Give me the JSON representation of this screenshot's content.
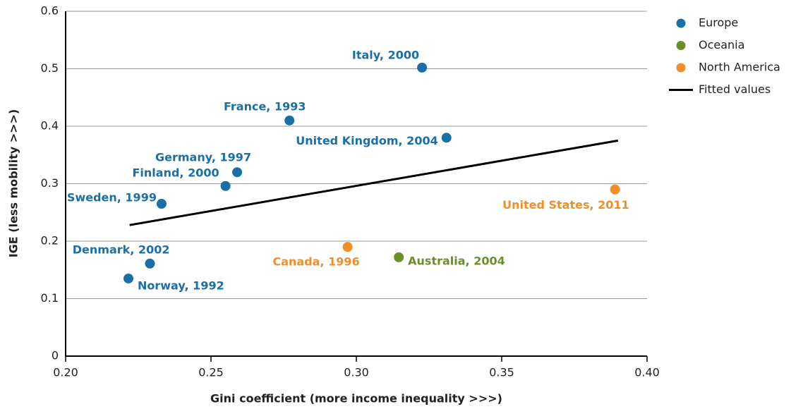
{
  "chart_data": {
    "type": "scatter",
    "xlabel": "Gini coefficient (more income inequality >>>)",
    "ylabel": "IGE (less mobility >>>)",
    "xlim": [
      0.2,
      0.4
    ],
    "xticks": [
      {
        "value": 0.2,
        "label": "0.20"
      },
      {
        "value": 0.25,
        "label": "0.25"
      },
      {
        "value": 0.3,
        "label": "0.30"
      },
      {
        "value": 0.35,
        "label": "0.35"
      },
      {
        "value": 0.4,
        "label": "0.40"
      }
    ],
    "ylim": [
      0,
      0.6
    ],
    "yticks": [
      0,
      0.1,
      0.2,
      0.3,
      0.4,
      0.5,
      0.6
    ],
    "grid": true,
    "legend": "right",
    "series": [
      {
        "name": "Europe",
        "color": "#1b6fa5",
        "x": [
          0.3226,
          0.277,
          0.331,
          0.259,
          0.255,
          0.233,
          0.229,
          0.2216
        ],
        "values": [
          0.502,
          0.41,
          0.38,
          0.32,
          0.296,
          0.265,
          0.161,
          0.135
        ],
        "labels": [
          "Italy, 2000",
          "France, 1993",
          "United Kingdom, 2004",
          "Germany, 1997",
          "Finland, 2000",
          "Sweden, 1999",
          "Denmark, 2002",
          "Norway, 1992"
        ]
      },
      {
        "name": "Oceania",
        "color": "#6b8e2b",
        "x": [
          0.3146
        ],
        "values": [
          0.172
        ],
        "labels": [
          "Australia, 2004"
        ]
      },
      {
        "name": "North America",
        "color": "#ef8f2a",
        "x": [
          0.297,
          0.389
        ],
        "values": [
          0.19,
          0.29
        ],
        "labels": [
          "Canada, 1996",
          "United States, 2011"
        ]
      },
      {
        "name": "Fitted values",
        "color": "#000000",
        "type": "line",
        "x": [
          0.222,
          0.39
        ],
        "values": [
          0.228,
          0.375
        ]
      }
    ]
  }
}
